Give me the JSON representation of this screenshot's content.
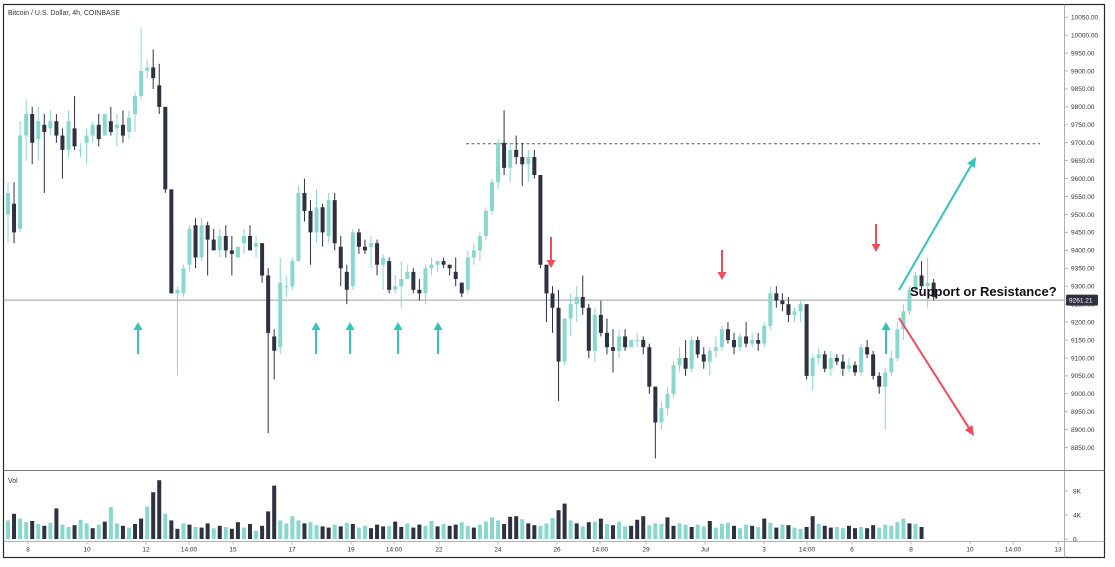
{
  "chart_data": {
    "type": "candlestick",
    "title": "Bitcoin / U.S. Dollar, 4h, COINBASE",
    "volume_label": "Vol",
    "annotation": "Support or Resistance?",
    "current_price_label": "9261.21",
    "current_price": 9261.21,
    "resistance_level": 9697,
    "ylim": [
      8810,
      10070
    ],
    "y_ticks": [
      "10050.00",
      "10000.00",
      "9950.00",
      "9900.00",
      "9850.00",
      "9800.00",
      "9750.00",
      "9700.00",
      "9650.00",
      "9600.00",
      "9550.00",
      "9500.00",
      "9450.00",
      "9400.00",
      "9350.00",
      "9300.00",
      "9250.00",
      "9200.00",
      "9150.00",
      "9100.00",
      "9050.00",
      "9000.00",
      "8950.00",
      "8900.00",
      "8850.00"
    ],
    "vol_ticks": [
      "8K",
      "4K",
      "0"
    ],
    "x_ticks": [
      "8",
      "10",
      "12",
      "14:00",
      "15",
      "17",
      "19",
      "14:00",
      "22",
      "24",
      "26",
      "14:00",
      "29",
      "Jul",
      "3",
      "14:00",
      "6",
      "8",
      "10",
      "14:00",
      "13"
    ],
    "grid": false,
    "candles": [
      [
        9500,
        9590,
        9420,
        9560
      ],
      [
        9530,
        9590,
        9420,
        9450
      ],
      [
        9460,
        9760,
        9450,
        9720
      ],
      [
        9720,
        9820,
        9650,
        9780
      ],
      [
        9780,
        9800,
        9640,
        9700
      ],
      [
        9710,
        9800,
        9650,
        9760
      ],
      [
        9750,
        9780,
        9560,
        9730
      ],
      [
        9740,
        9790,
        9720,
        9760
      ],
      [
        9760,
        9780,
        9700,
        9720
      ],
      [
        9720,
        9740,
        9600,
        9680
      ],
      [
        9680,
        9790,
        9660,
        9760
      ],
      [
        9740,
        9830,
        9680,
        9690
      ],
      [
        9680,
        9700,
        9660,
        9680
      ],
      [
        9700,
        9740,
        9640,
        9720
      ],
      [
        9720,
        9760,
        9700,
        9750
      ],
      [
        9750,
        9780,
        9690,
        9710
      ],
      [
        9720,
        9780,
        9720,
        9780
      ],
      [
        9760,
        9800,
        9720,
        9730
      ],
      [
        9740,
        9780,
        9690,
        9750
      ],
      [
        9750,
        9790,
        9700,
        9720
      ],
      [
        9730,
        9790,
        9710,
        9770
      ],
      [
        9780,
        9840,
        9730,
        9830
      ],
      [
        9830,
        10020,
        9820,
        9900
      ],
      [
        9900,
        9930,
        9880,
        9910
      ],
      [
        9910,
        9960,
        9850,
        9880
      ],
      [
        9860,
        9920,
        9780,
        9800
      ],
      [
        9800,
        9800,
        9560,
        9570
      ],
      [
        9570,
        9570,
        9280,
        9280
      ],
      [
        9280,
        9300,
        9050,
        9290
      ],
      [
        9280,
        9360,
        9270,
        9350
      ],
      [
        9360,
        9470,
        9340,
        9460
      ],
      [
        9470,
        9490,
        9350,
        9380
      ],
      [
        9380,
        9490,
        9370,
        9470
      ],
      [
        9470,
        9480,
        9330,
        9430
      ],
      [
        9430,
        9460,
        9400,
        9400
      ],
      [
        9400,
        9460,
        9380,
        9440
      ],
      [
        9440,
        9470,
        9380,
        9400
      ],
      [
        9400,
        9440,
        9330,
        9390
      ],
      [
        9380,
        9410,
        9390,
        9410
      ],
      [
        9420,
        9460,
        9390,
        9440
      ],
      [
        9440,
        9470,
        9400,
        9400
      ],
      [
        9410,
        9440,
        9380,
        9420
      ],
      [
        9420,
        9420,
        9310,
        9330
      ],
      [
        9330,
        9350,
        8890,
        9170
      ],
      [
        9160,
        9180,
        9040,
        9120
      ],
      [
        9130,
        9380,
        9110,
        9310
      ],
      [
        9300,
        9330,
        9270,
        9300
      ],
      [
        9300,
        9380,
        9290,
        9370
      ],
      [
        9370,
        9580,
        9370,
        9560
      ],
      [
        9560,
        9600,
        9480,
        9510
      ],
      [
        9510,
        9540,
        9360,
        9450
      ],
      [
        9450,
        9570,
        9420,
        9520
      ],
      [
        9520,
        9530,
        9410,
        9450
      ],
      [
        9440,
        9560,
        9420,
        9540
      ],
      [
        9540,
        9560,
        9400,
        9420
      ],
      [
        9410,
        9440,
        9300,
        9350
      ],
      [
        9340,
        9360,
        9250,
        9290
      ],
      [
        9300,
        9460,
        9290,
        9450
      ],
      [
        9450,
        9460,
        9390,
        9410
      ],
      [
        9410,
        9430,
        9390,
        9400
      ],
      [
        9410,
        9440,
        9350,
        9420
      ],
      [
        9420,
        9430,
        9330,
        9360
      ],
      [
        9360,
        9390,
        9290,
        9380
      ],
      [
        9370,
        9380,
        9280,
        9290
      ],
      [
        9290,
        9330,
        9280,
        9300
      ],
      [
        9300,
        9370,
        9240,
        9320
      ],
      [
        9320,
        9360,
        9320,
        9340
      ],
      [
        9340,
        9350,
        9280,
        9290
      ],
      [
        9290,
        9320,
        9260,
        9280
      ],
      [
        9280,
        9360,
        9250,
        9350
      ],
      [
        9350,
        9380,
        9330,
        9360
      ],
      [
        9360,
        9370,
        9340,
        9370
      ],
      [
        9370,
        9380,
        9350,
        9360
      ],
      [
        9360,
        9360,
        9330,
        9350
      ],
      [
        9340,
        9380,
        9300,
        9320
      ],
      [
        9310,
        9310,
        9270,
        9280
      ],
      [
        9290,
        9400,
        9280,
        9380
      ],
      [
        9380,
        9420,
        9360,
        9400
      ],
      [
        9400,
        9450,
        9370,
        9440
      ],
      [
        9440,
        9520,
        9430,
        9510
      ],
      [
        9510,
        9600,
        9500,
        9590
      ],
      [
        9590,
        9710,
        9570,
        9700
      ],
      [
        9700,
        9790,
        9610,
        9630
      ],
      [
        9630,
        9700,
        9590,
        9680
      ],
      [
        9680,
        9720,
        9640,
        9660
      ],
      [
        9660,
        9700,
        9580,
        9640
      ],
      [
        9640,
        9680,
        9590,
        9660
      ],
      [
        9660,
        9680,
        9600,
        9610
      ],
      [
        9610,
        9610,
        9350,
        9360
      ],
      [
        9360,
        9360,
        9200,
        9280
      ],
      [
        9280,
        9300,
        9170,
        9240
      ],
      [
        9240,
        9290,
        8980,
        9090
      ],
      [
        9090,
        9210,
        9080,
        9210
      ],
      [
        9210,
        9280,
        9160,
        9250
      ],
      [
        9250,
        9300,
        9200,
        9270
      ],
      [
        9270,
        9330,
        9220,
        9240
      ],
      [
        9240,
        9250,
        9100,
        9120
      ],
      [
        9120,
        9240,
        9090,
        9220
      ],
      [
        9220,
        9260,
        9160,
        9170
      ],
      [
        9170,
        9210,
        9110,
        9130
      ],
      [
        9130,
        9180,
        9060,
        9120
      ],
      [
        9120,
        9180,
        9100,
        9160
      ],
      [
        9160,
        9180,
        9120,
        9130
      ],
      [
        9130,
        9150,
        9140,
        9150
      ],
      [
        9150,
        9170,
        9130,
        9150
      ],
      [
        9150,
        9160,
        9110,
        9130
      ],
      [
        9130,
        9140,
        9000,
        9020
      ],
      [
        9020,
        9020,
        8820,
        8920
      ],
      [
        8920,
        8980,
        8900,
        8960
      ],
      [
        8960,
        9020,
        8940,
        9000
      ],
      [
        9000,
        9090,
        8990,
        9080
      ],
      [
        9080,
        9130,
        9060,
        9100
      ],
      [
        9100,
        9150,
        9050,
        9070
      ],
      [
        9070,
        9160,
        9060,
        9150
      ],
      [
        9150,
        9160,
        9100,
        9110
      ],
      [
        9110,
        9130,
        9070,
        9090
      ],
      [
        9090,
        9130,
        9050,
        9120
      ],
      [
        9120,
        9160,
        9100,
        9130
      ],
      [
        9130,
        9190,
        9120,
        9180
      ],
      [
        9180,
        9200,
        9140,
        9150
      ],
      [
        9150,
        9170,
        9110,
        9130
      ],
      [
        9130,
        9170,
        9120,
        9160
      ],
      [
        9160,
        9200,
        9130,
        9140
      ],
      [
        9140,
        9170,
        9130,
        9150
      ],
      [
        9150,
        9170,
        9120,
        9140
      ],
      [
        9140,
        9200,
        9130,
        9190
      ],
      [
        9190,
        9300,
        9180,
        9280
      ],
      [
        9280,
        9300,
        9240,
        9260
      ],
      [
        9260,
        9280,
        9230,
        9250
      ],
      [
        9250,
        9270,
        9200,
        9220
      ],
      [
        9220,
        9240,
        9200,
        9230
      ],
      [
        9230,
        9260,
        9200,
        9250
      ],
      [
        9250,
        9250,
        9040,
        9050
      ],
      [
        9050,
        9110,
        9010,
        9100
      ],
      [
        9100,
        9130,
        9080,
        9110
      ],
      [
        9110,
        9120,
        9060,
        9070
      ],
      [
        9070,
        9120,
        9050,
        9100
      ],
      [
        9100,
        9110,
        9080,
        9090
      ],
      [
        9090,
        9110,
        9050,
        9070
      ],
      [
        9070,
        9100,
        9060,
        9080
      ],
      [
        9080,
        9090,
        9050,
        9060
      ],
      [
        9060,
        9140,
        9050,
        9130
      ],
      [
        9130,
        9150,
        9100,
        9110
      ],
      [
        9110,
        9120,
        9040,
        9050
      ],
      [
        9050,
        9060,
        9000,
        9020
      ],
      [
        9020,
        9070,
        8900,
        9060
      ],
      [
        9060,
        9120,
        9050,
        9100
      ],
      [
        9100,
        9200,
        9090,
        9180
      ],
      [
        9180,
        9250,
        9150,
        9230
      ],
      [
        9230,
        9300,
        9220,
        9290
      ],
      [
        9290,
        9340,
        9280,
        9330
      ],
      [
        9330,
        9370,
        9290,
        9300
      ],
      [
        9300,
        9380,
        9240,
        9310
      ],
      [
        9310,
        9320,
        9260,
        9270
      ]
    ],
    "volume": [
      [
        3.1,
        1
      ],
      [
        4.2,
        0
      ],
      [
        3.4,
        1
      ],
      [
        2.8,
        1
      ],
      [
        3.0,
        0
      ],
      [
        2.5,
        1
      ],
      [
        2.2,
        0
      ],
      [
        2.7,
        1
      ],
      [
        5.1,
        0
      ],
      [
        2.4,
        1
      ],
      [
        2.0,
        1
      ],
      [
        2.3,
        0
      ],
      [
        3.2,
        1
      ],
      [
        2.6,
        1
      ],
      [
        1.8,
        0
      ],
      [
        2.4,
        1
      ],
      [
        2.9,
        0
      ],
      [
        5.3,
        1
      ],
      [
        2.6,
        1
      ],
      [
        2.2,
        0
      ],
      [
        1.9,
        1
      ],
      [
        2.5,
        0
      ],
      [
        3.4,
        0
      ],
      [
        5.4,
        1
      ],
      [
        7.8,
        0
      ],
      [
        9.8,
        0
      ],
      [
        4.2,
        1
      ],
      [
        3.1,
        0
      ],
      [
        1.7,
        0
      ],
      [
        2.6,
        1
      ],
      [
        2.4,
        0
      ],
      [
        2.0,
        1
      ],
      [
        1.9,
        0
      ],
      [
        2.6,
        0
      ],
      [
        1.8,
        1
      ],
      [
        2.2,
        0
      ],
      [
        2.0,
        1
      ],
      [
        1.7,
        0
      ],
      [
        2.8,
        0
      ],
      [
        1.9,
        1
      ],
      [
        2.5,
        0
      ],
      [
        1.4,
        1
      ],
      [
        2.2,
        0
      ],
      [
        4.6,
        0
      ],
      [
        8.9,
        0
      ],
      [
        3.1,
        1
      ],
      [
        2.6,
        1
      ],
      [
        3.8,
        1
      ],
      [
        3.1,
        1
      ],
      [
        2.6,
        0
      ],
      [
        2.8,
        1
      ],
      [
        2.3,
        1
      ],
      [
        2.1,
        0
      ],
      [
        1.9,
        0
      ],
      [
        2.4,
        1
      ],
      [
        2.1,
        0
      ],
      [
        2.7,
        1
      ],
      [
        2.5,
        0
      ],
      [
        1.9,
        1
      ],
      [
        2.2,
        1
      ],
      [
        1.8,
        0
      ],
      [
        2.4,
        0
      ],
      [
        2.1,
        0
      ],
      [
        2.2,
        1
      ],
      [
        2.9,
        0
      ],
      [
        2.0,
        0
      ],
      [
        2.6,
        1
      ],
      [
        1.9,
        0
      ],
      [
        2.4,
        0
      ],
      [
        2.2,
        1
      ],
      [
        3.0,
        1
      ],
      [
        2.1,
        0
      ],
      [
        2.5,
        1
      ],
      [
        2.2,
        0
      ],
      [
        2.4,
        0
      ],
      [
        2.8,
        1
      ],
      [
        2.2,
        1
      ],
      [
        1.9,
        0
      ],
      [
        2.4,
        1
      ],
      [
        2.9,
        1
      ],
      [
        3.6,
        1
      ],
      [
        3.1,
        1
      ],
      [
        2.5,
        0
      ],
      [
        3.7,
        0
      ],
      [
        3.8,
        0
      ],
      [
        3.3,
        1
      ],
      [
        2.6,
        0
      ],
      [
        2.3,
        0
      ],
      [
        2.2,
        1
      ],
      [
        2.6,
        1
      ],
      [
        3.5,
        1
      ],
      [
        4.8,
        0
      ],
      [
        5.9,
        0
      ],
      [
        3.1,
        1
      ],
      [
        2.6,
        0
      ],
      [
        2.1,
        1
      ],
      [
        2.8,
        0
      ],
      [
        2.9,
        1
      ],
      [
        3.4,
        0
      ],
      [
        2.5,
        1
      ],
      [
        2.3,
        0
      ],
      [
        2.9,
        1
      ],
      [
        2.1,
        1
      ],
      [
        2.2,
        0
      ],
      [
        3.2,
        0
      ],
      [
        3.8,
        0
      ],
      [
        2.3,
        1
      ],
      [
        2.6,
        1
      ],
      [
        2.5,
        1
      ],
      [
        3.6,
        0
      ],
      [
        2.2,
        0
      ],
      [
        2.6,
        1
      ],
      [
        2.4,
        1
      ],
      [
        2.0,
        0
      ],
      [
        2.4,
        1
      ],
      [
        2.1,
        1
      ],
      [
        3.0,
        0
      ],
      [
        1.9,
        1
      ],
      [
        2.5,
        1
      ],
      [
        2.7,
        1
      ],
      [
        2.2,
        0
      ],
      [
        1.8,
        1
      ],
      [
        2.4,
        1
      ],
      [
        2.2,
        0
      ],
      [
        2.0,
        1
      ],
      [
        3.4,
        0
      ],
      [
        2.7,
        1
      ],
      [
        1.9,
        0
      ],
      [
        2.4,
        1
      ],
      [
        2.3,
        0
      ],
      [
        1.9,
        1
      ],
      [
        1.7,
        1
      ],
      [
        2.0,
        0
      ],
      [
        3.8,
        0
      ],
      [
        2.5,
        1
      ],
      [
        2.2,
        0
      ],
      [
        1.9,
        0
      ],
      [
        2.0,
        1
      ],
      [
        1.8,
        1
      ],
      [
        2.2,
        0
      ],
      [
        1.8,
        0
      ],
      [
        2.0,
        1
      ],
      [
        1.8,
        0
      ],
      [
        2.3,
        0
      ],
      [
        1.9,
        1
      ],
      [
        2.4,
        1
      ],
      [
        2.2,
        1
      ],
      [
        2.8,
        1
      ],
      [
        3.4,
        1
      ],
      [
        2.6,
        0
      ],
      [
        2.5,
        1
      ],
      [
        2.0,
        0
      ]
    ],
    "arrows_up_at": [
      138,
      316,
      350,
      398,
      438,
      886
    ],
    "arrows_down_at": [
      551,
      722,
      876
    ],
    "colors": {
      "up": "#88d8cd",
      "down": "#2d3140",
      "arrow_up": "#34c3bd",
      "arrow_down": "#f04c5c",
      "line": "#9aa0a6",
      "dashed": "#5b6066",
      "badge": "#2d3140"
    }
  }
}
